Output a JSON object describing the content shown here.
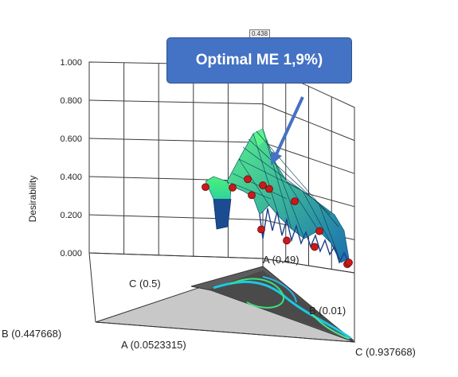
{
  "chart_data": {
    "type": "surface3d",
    "zlabel": "Desirability",
    "zticks": [
      "1.000",
      "0.800",
      "0.600",
      "0.400",
      "0.200",
      "0.000"
    ],
    "zlim": [
      0,
      1
    ],
    "peak_label": "0.438",
    "ternary_labels": {
      "c_top": "C (0.5)",
      "a_mid": "A (0.49)",
      "b_mid": "B (0.01)",
      "a_left": "A (0.0523315)",
      "c_right": "C (0.937668)",
      "b_left": "B (0.447668)"
    },
    "annotation": "Optimal ME 1,9%)",
    "design_points": [
      {
        "desirability": 0.59
      },
      {
        "desirability": 0.47
      },
      {
        "desirability": 0.43
      },
      {
        "desirability": 0.38
      },
      {
        "desirability": 0.4
      },
      {
        "desirability": 0.36
      },
      {
        "desirability": 0.33
      },
      {
        "desirability": 0.21
      },
      {
        "desirability": 0.15
      },
      {
        "desirability": 0.14
      },
      {
        "desirability": 0.13
      },
      {
        "desirability": 0.06
      },
      {
        "desirability": 0.05
      }
    ],
    "colors": {
      "surface_high": "#39e66b",
      "surface_low": "#1d3f8a",
      "points": "#c81a1a",
      "base_grey": "#c0c0c0",
      "base_dark": "#5a5a5a",
      "arrow": "#4472c4"
    }
  }
}
